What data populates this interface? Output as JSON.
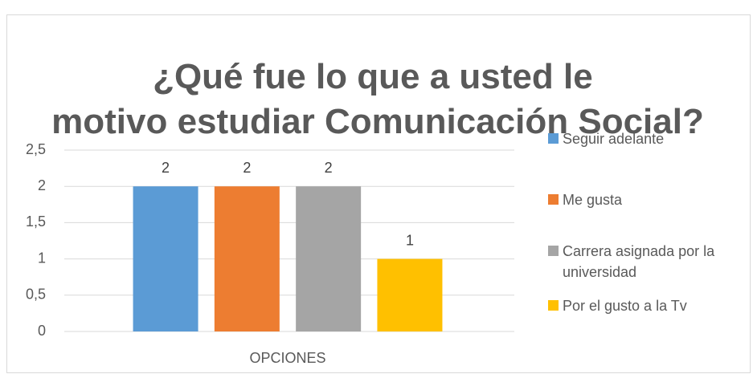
{
  "chart_data": {
    "type": "bar",
    "title": "¿Qué fue lo que a usted le motivo estudiar Comunicación Social?",
    "categories": [
      "OPCIONES"
    ],
    "series": [
      {
        "name": "Seguir adelante",
        "color": "#5b9bd5",
        "values": [
          2
        ]
      },
      {
        "name": "Me gusta",
        "color": "#ed7d31",
        "values": [
          2
        ]
      },
      {
        "name": "Carrera asignada por la universidad",
        "color": "#a5a5a5",
        "values": [
          2
        ]
      },
      {
        "name": "Por el gusto a la Tv",
        "color": "#ffc000",
        "values": [
          1
        ]
      }
    ],
    "ylim": [
      0,
      2.5
    ],
    "yticks": [
      0,
      {
        "value": 0.5,
        "label": "0,5"
      },
      1,
      {
        "value": 1.5,
        "label": "1,5"
      },
      2,
      {
        "value": 2.5,
        "label": "2,5"
      }
    ],
    "grid": true,
    "legend": "right"
  }
}
